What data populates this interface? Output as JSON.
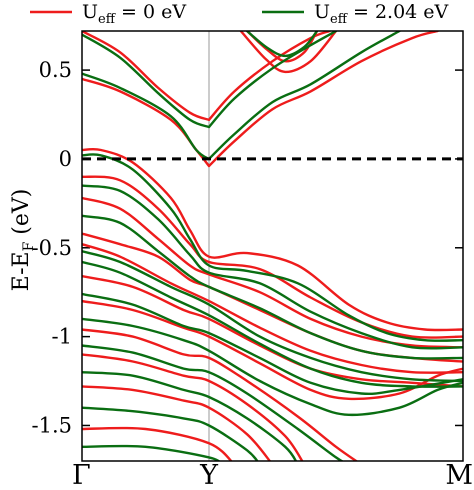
{
  "chart_data": {
    "type": "line",
    "ylabel_main": "E-E",
    "ylabel_sub": "F",
    "ylabel_unit": " (eV)",
    "ylim": [
      -1.7,
      0.72
    ],
    "yticks": [
      {
        "value": 0.5,
        "label": "0.5"
      },
      {
        "value": 0,
        "label": "0"
      },
      {
        "value": -0.5,
        "label": "-0.5"
      },
      {
        "value": -1,
        "label": "-1"
      },
      {
        "value": -1.5,
        "label": "-1.5"
      }
    ],
    "kpoints": [
      {
        "label": "Γ",
        "pos": 0
      },
      {
        "label": "Y",
        "pos": 1
      },
      {
        "label": "M",
        "pos": 3
      }
    ],
    "fermi_level": 0,
    "legend_placement": "top",
    "series": [
      {
        "name_main": "U",
        "name_sub": "eff",
        "name_rest": " = 0 eV",
        "color": "#ee1c1c",
        "bands": [
          [
            [
              0,
              0.72
            ],
            [
              0.3,
              0.6
            ],
            [
              0.6,
              0.4
            ],
            [
              0.85,
              0.26
            ],
            [
              1,
              0.22
            ]
          ],
          [
            [
              0,
              0.45
            ],
            [
              0.3,
              0.38
            ],
            [
              0.7,
              0.22
            ],
            [
              0.9,
              0.05
            ],
            [
              1,
              -0.04
            ]
          ],
          [
            [
              1,
              -0.04
            ],
            [
              1.2,
              0.1
            ],
            [
              1.5,
              0.28
            ],
            [
              1.8,
              0.38
            ],
            [
              2.2,
              0.55
            ],
            [
              2.6,
              0.68
            ],
            [
              2.8,
              0.72
            ]
          ],
          [
            [
              1,
              0.22
            ],
            [
              1.2,
              0.38
            ],
            [
              1.5,
              0.55
            ],
            [
              1.8,
              0.68
            ],
            [
              1.95,
              0.72
            ]
          ],
          [
            [
              1.3,
              0.72
            ],
            [
              1.45,
              0.62
            ],
            [
              1.6,
              0.55
            ],
            [
              1.75,
              0.6
            ],
            [
              1.85,
              0.72
            ]
          ],
          [
            [
              1.25,
              0.72
            ],
            [
              1.45,
              0.56
            ],
            [
              1.6,
              0.49
            ],
            [
              1.8,
              0.55
            ],
            [
              2.0,
              0.72
            ]
          ],
          [
            [
              0,
              0.05
            ],
            [
              0.15,
              0.05
            ],
            [
              0.4,
              -0.02
            ],
            [
              0.7,
              -0.22
            ],
            [
              0.85,
              -0.4
            ],
            [
              1,
              -0.55
            ],
            [
              1.3,
              -0.53
            ],
            [
              1.7,
              -0.6
            ],
            [
              2.1,
              -0.82
            ],
            [
              2.4,
              -0.92
            ],
            [
              2.7,
              -0.96
            ],
            [
              3,
              -0.96
            ]
          ],
          [
            [
              0,
              -0.1
            ],
            [
              0.3,
              -0.12
            ],
            [
              0.6,
              -0.28
            ],
            [
              0.85,
              -0.48
            ],
            [
              1,
              -0.58
            ],
            [
              1.4,
              -0.62
            ],
            [
              1.8,
              -0.78
            ],
            [
              2.2,
              -0.92
            ],
            [
              2.6,
              -1.0
            ],
            [
              3,
              -1.0
            ]
          ],
          [
            [
              0,
              -0.22
            ],
            [
              0.3,
              -0.28
            ],
            [
              0.6,
              -0.45
            ],
            [
              0.85,
              -0.6
            ],
            [
              1,
              -0.65
            ],
            [
              1.4,
              -0.75
            ],
            [
              1.8,
              -0.9
            ],
            [
              2.2,
              -1.0
            ],
            [
              2.6,
              -1.05
            ],
            [
              3,
              -1.06
            ]
          ],
          [
            [
              0,
              -0.42
            ],
            [
              0.3,
              -0.48
            ],
            [
              0.6,
              -0.55
            ],
            [
              0.85,
              -0.68
            ],
            [
              1,
              -0.72
            ],
            [
              1.4,
              -0.85
            ],
            [
              1.8,
              -0.98
            ],
            [
              2.2,
              -1.08
            ],
            [
              2.6,
              -1.12
            ],
            [
              3,
              -1.14
            ]
          ],
          [
            [
              0,
              -0.48
            ],
            [
              0.3,
              -0.55
            ],
            [
              0.7,
              -0.7
            ],
            [
              1,
              -0.8
            ],
            [
              1.4,
              -0.95
            ],
            [
              1.8,
              -1.08
            ],
            [
              2.2,
              -1.16
            ],
            [
              2.6,
              -1.2
            ],
            [
              3,
              -1.2
            ]
          ],
          [
            [
              0,
              -0.66
            ],
            [
              0.4,
              -0.72
            ],
            [
              0.8,
              -0.85
            ],
            [
              1,
              -0.9
            ],
            [
              1.4,
              -1.05
            ],
            [
              1.8,
              -1.18
            ],
            [
              2.2,
              -1.24
            ],
            [
              2.6,
              -1.26
            ],
            [
              3,
              -1.28
            ]
          ],
          [
            [
              0,
              -0.8
            ],
            [
              0.4,
              -0.85
            ],
            [
              0.8,
              -0.95
            ],
            [
              1,
              -1.0
            ],
            [
              1.4,
              -1.15
            ],
            [
              1.8,
              -1.3
            ],
            [
              2.1,
              -1.35
            ],
            [
              2.5,
              -1.32
            ],
            [
              2.8,
              -1.22
            ],
            [
              3,
              -1.18
            ]
          ],
          [
            [
              0,
              -0.96
            ],
            [
              0.4,
              -1.0
            ],
            [
              0.8,
              -1.1
            ],
            [
              1,
              -1.12
            ],
            [
              1.3,
              -1.25
            ],
            [
              1.7,
              -1.45
            ],
            [
              2.0,
              -1.62
            ],
            [
              2.2,
              -1.72
            ]
          ],
          [
            [
              0,
              -1.1
            ],
            [
              0.4,
              -1.14
            ],
            [
              0.8,
              -1.22
            ],
            [
              1,
              -1.25
            ],
            [
              1.3,
              -1.38
            ],
            [
              1.6,
              -1.56
            ],
            [
              1.75,
              -1.72
            ]
          ],
          [
            [
              0,
              -1.28
            ],
            [
              0.4,
              -1.3
            ],
            [
              0.8,
              -1.36
            ],
            [
              1,
              -1.4
            ],
            [
              1.3,
              -1.55
            ],
            [
              1.5,
              -1.72
            ]
          ],
          [
            [
              0,
              -1.52
            ],
            [
              0.5,
              -1.52
            ],
            [
              1,
              -1.6
            ],
            [
              1.2,
              -1.72
            ]
          ]
        ]
      },
      {
        "name_main": "U",
        "name_sub": "eff",
        "name_rest": " = 2.04 eV",
        "color": "#0a6e12",
        "bands": [
          [
            [
              0,
              0.7
            ],
            [
              0.3,
              0.57
            ],
            [
              0.6,
              0.37
            ],
            [
              0.85,
              0.22
            ],
            [
              1,
              0.18
            ]
          ],
          [
            [
              0,
              0.48
            ],
            [
              0.3,
              0.4
            ],
            [
              0.7,
              0.24
            ],
            [
              0.9,
              0.05
            ],
            [
              1,
              0.0
            ]
          ],
          [
            [
              1,
              0.0
            ],
            [
              1.2,
              0.14
            ],
            [
              1.5,
              0.32
            ],
            [
              1.8,
              0.42
            ],
            [
              2.2,
              0.6
            ],
            [
              2.5,
              0.72
            ]
          ],
          [
            [
              1,
              0.18
            ],
            [
              1.2,
              0.34
            ],
            [
              1.5,
              0.51
            ],
            [
              1.8,
              0.64
            ],
            [
              2.0,
              0.72
            ]
          ],
          [
            [
              1.3,
              0.72
            ],
            [
              1.45,
              0.63
            ],
            [
              1.6,
              0.58
            ],
            [
              1.75,
              0.63
            ],
            [
              1.85,
              0.72
            ]
          ],
          [
            [
              0,
              0.02
            ],
            [
              0.15,
              0.02
            ],
            [
              0.4,
              -0.06
            ],
            [
              0.7,
              -0.28
            ],
            [
              0.85,
              -0.45
            ],
            [
              1,
              -0.6
            ],
            [
              1.3,
              -0.63
            ],
            [
              1.7,
              -0.7
            ],
            [
              2.1,
              -0.88
            ],
            [
              2.4,
              -0.98
            ],
            [
              2.7,
              -1.02
            ],
            [
              3,
              -1.02
            ]
          ],
          [
            [
              0,
              -0.15
            ],
            [
              0.3,
              -0.18
            ],
            [
              0.6,
              -0.34
            ],
            [
              0.85,
              -0.54
            ],
            [
              1,
              -0.64
            ],
            [
              1.4,
              -0.7
            ],
            [
              1.8,
              -0.86
            ],
            [
              2.2,
              -0.98
            ],
            [
              2.6,
              -1.06
            ],
            [
              3,
              -1.06
            ]
          ],
          [
            [
              0,
              -0.32
            ],
            [
              0.3,
              -0.36
            ],
            [
              0.6,
              -0.52
            ],
            [
              0.85,
              -0.66
            ],
            [
              1,
              -0.72
            ],
            [
              1.4,
              -0.84
            ],
            [
              1.8,
              -0.98
            ],
            [
              2.2,
              -1.08
            ],
            [
              2.6,
              -1.12
            ],
            [
              3,
              -1.12
            ]
          ],
          [
            [
              0,
              -0.52
            ],
            [
              0.3,
              -0.58
            ],
            [
              0.7,
              -0.72
            ],
            [
              1,
              -0.82
            ],
            [
              1.4,
              -1.0
            ],
            [
              1.8,
              -1.12
            ],
            [
              2.2,
              -1.2
            ],
            [
              2.6,
              -1.24
            ],
            [
              3,
              -1.25
            ]
          ],
          [
            [
              0,
              -0.58
            ],
            [
              0.3,
              -0.64
            ],
            [
              0.7,
              -0.78
            ],
            [
              1,
              -0.88
            ],
            [
              1.4,
              -1.04
            ],
            [
              1.8,
              -1.18
            ],
            [
              2.2,
              -1.26
            ],
            [
              2.6,
              -1.28
            ],
            [
              3,
              -1.28
            ]
          ],
          [
            [
              0,
              -0.76
            ],
            [
              0.4,
              -0.82
            ],
            [
              0.8,
              -0.94
            ],
            [
              1,
              -0.98
            ],
            [
              1.4,
              -1.12
            ],
            [
              1.8,
              -1.26
            ],
            [
              2.2,
              -1.32
            ],
            [
              2.5,
              -1.3
            ],
            [
              3,
              -1.24
            ]
          ],
          [
            [
              0,
              -0.9
            ],
            [
              0.4,
              -0.94
            ],
            [
              0.8,
              -1.02
            ],
            [
              1,
              -1.08
            ],
            [
              1.4,
              -1.25
            ],
            [
              1.8,
              -1.38
            ],
            [
              2.1,
              -1.44
            ],
            [
              2.5,
              -1.4
            ],
            [
              2.8,
              -1.3
            ],
            [
              3,
              -1.26
            ]
          ],
          [
            [
              0,
              -1.05
            ],
            [
              0.4,
              -1.09
            ],
            [
              0.8,
              -1.18
            ],
            [
              1,
              -1.2
            ],
            [
              1.3,
              -1.32
            ],
            [
              1.7,
              -1.52
            ],
            [
              2.0,
              -1.68
            ],
            [
              2.1,
              -1.72
            ]
          ],
          [
            [
              0,
              -1.2
            ],
            [
              0.4,
              -1.22
            ],
            [
              0.8,
              -1.3
            ],
            [
              1,
              -1.34
            ],
            [
              1.3,
              -1.46
            ],
            [
              1.6,
              -1.62
            ],
            [
              1.7,
              -1.72
            ]
          ],
          [
            [
              0,
              -1.4
            ],
            [
              0.4,
              -1.42
            ],
            [
              0.8,
              -1.46
            ],
            [
              1,
              -1.5
            ],
            [
              1.3,
              -1.64
            ],
            [
              1.4,
              -1.72
            ]
          ],
          [
            [
              0,
              -1.62
            ],
            [
              0.5,
              -1.62
            ],
            [
              1,
              -1.68
            ],
            [
              1.1,
              -1.72
            ]
          ]
        ]
      }
    ]
  }
}
